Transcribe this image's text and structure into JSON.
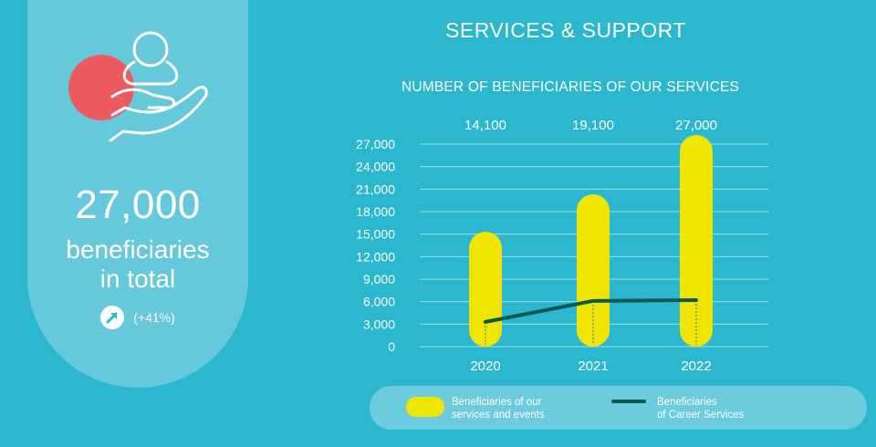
{
  "summary": {
    "total": "27,000",
    "total_label_line1": "beneficiaries",
    "total_label_line2": "in total",
    "growth": "(+41%)",
    "icon": "hand-holding-person-icon",
    "growth_icon": "arrow-up-right-icon"
  },
  "section_title": "SERVICES & SUPPORT",
  "chart_data": {
    "type": "bar",
    "title": "NUMBER OF BENEFICIARIES OF OUR SERVICES",
    "categories": [
      "2020",
      "2021",
      "2022"
    ],
    "series": [
      {
        "name": "Beneficiaries of our services and events",
        "type": "bar",
        "values": [
          14100,
          19100,
          27000
        ],
        "value_labels": [
          "14,100",
          "19,100",
          "27,000"
        ],
        "color": "#f0e500"
      },
      {
        "name": "Beneficiaries of Career Services",
        "type": "line",
        "values": [
          3300,
          6100,
          6200
        ],
        "color": "#0b5a50"
      }
    ],
    "yticks": [
      0,
      3000,
      6000,
      9000,
      12000,
      15000,
      18000,
      21000,
      24000,
      27000
    ],
    "ytick_labels": [
      "0",
      "3,000",
      "6,000",
      "9,000",
      "12,000",
      "15,000",
      "18,000",
      "21,000",
      "24,000",
      "27,000"
    ],
    "ylim": [
      0,
      27000
    ],
    "grid": true,
    "legend_position": "bottom"
  },
  "legend": {
    "bar_label_line1": "Beneficiaries of our",
    "bar_label_line2": "services and events",
    "line_label_line1": "Beneficiaries",
    "line_label_line2": "of Career Services"
  },
  "colors": {
    "background": "#2bb8cf",
    "panel": "#66c8db",
    "accent_red": "#ef5a5e",
    "bar_yellow": "#f0e500",
    "line_green": "#0b5a50"
  }
}
